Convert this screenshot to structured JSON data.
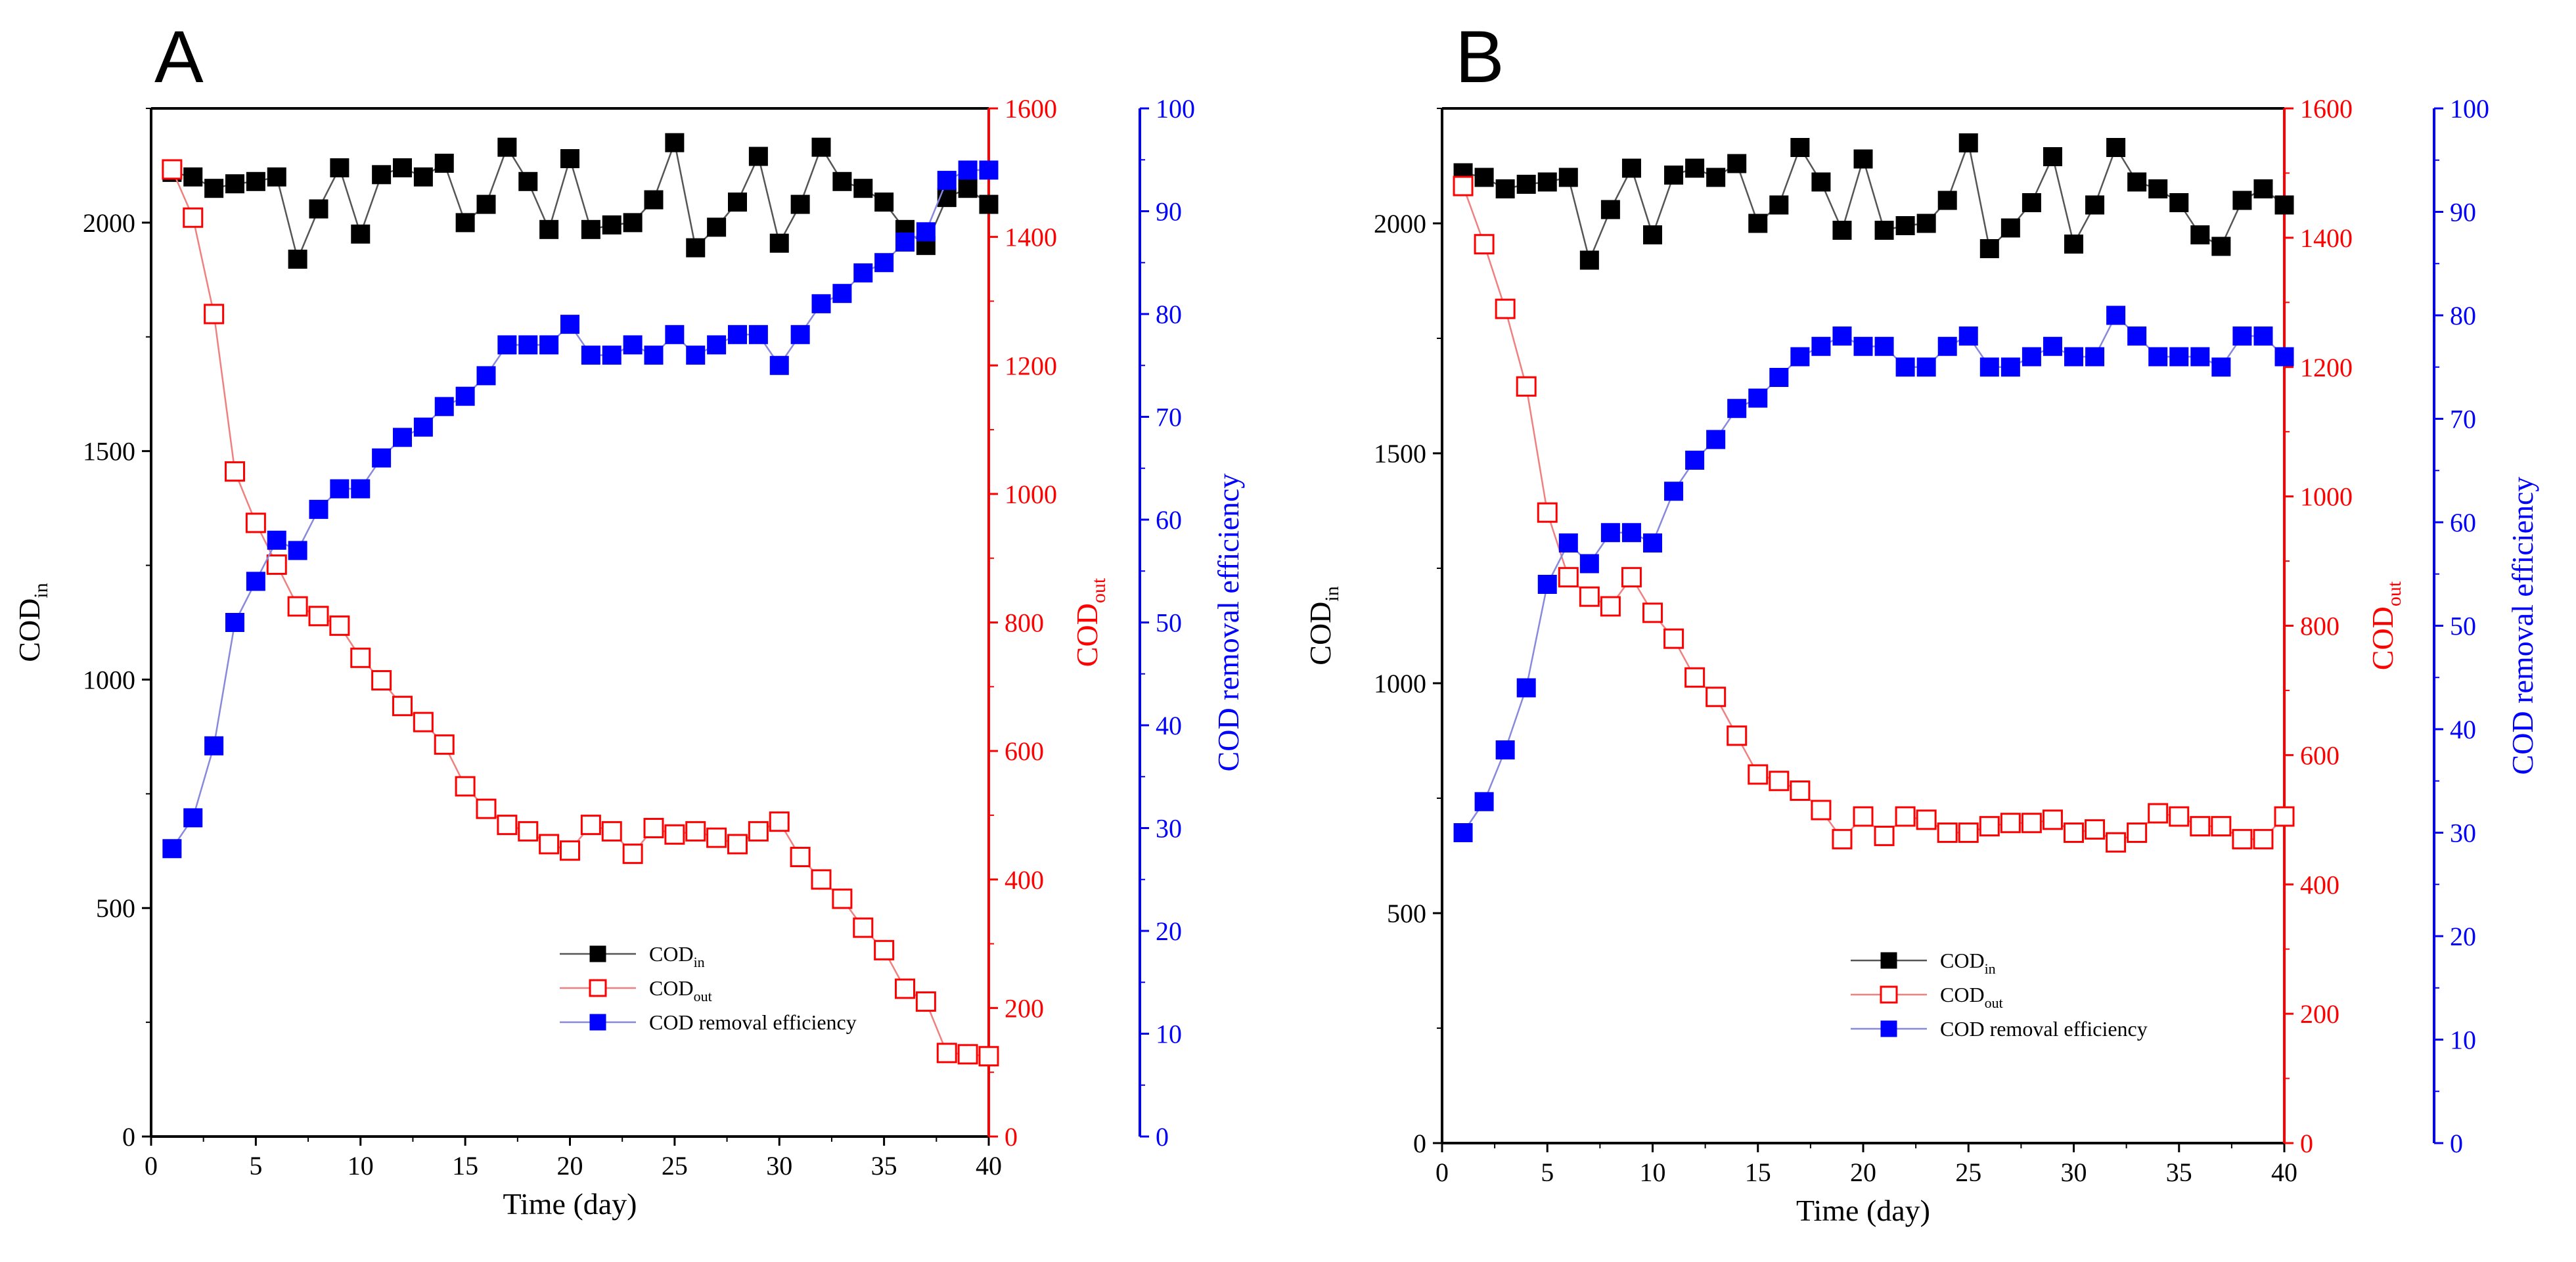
{
  "figure": {
    "colors": {
      "cod_in": "#000000",
      "cod_out": "#ff0000",
      "cod_removal": "#0000ff",
      "cod_out_line": "#f08080",
      "cod_removal_line": "#8888dd"
    }
  },
  "chart_data": [
    {
      "type": "line",
      "panel_label": "A",
      "xlabel": "Time (day)",
      "ylabel_left": "COD",
      "ylabel_left_sub": "in",
      "ylabel_right1": "COD",
      "ylabel_right1_sub": "out",
      "ylabel_right2": "COD removal efficiency",
      "x_ticks": [
        "0",
        "5",
        "10",
        "15",
        "20",
        "25",
        "30",
        "35",
        "40"
      ],
      "left_ticks": [
        "0",
        "500",
        "1000",
        "1500",
        "2000"
      ],
      "right1_ticks": [
        "0",
        "200",
        "400",
        "600",
        "800",
        "1000",
        "1200",
        "1400",
        "1600"
      ],
      "right2_ticks": [
        "0",
        "10",
        "20",
        "30",
        "40",
        "50",
        "60",
        "70",
        "80",
        "90",
        "100"
      ],
      "xlim": [
        0,
        40
      ],
      "left_ylim": [
        0,
        2250
      ],
      "right1_ylim": [
        0,
        1600
      ],
      "right2_ylim": [
        0,
        100
      ],
      "legend": {
        "position": "bottom-center",
        "entries": [
          {
            "label": "COD",
            "sub": "in"
          },
          {
            "label": "COD",
            "sub": "out"
          },
          {
            "label": "COD removal efficiency",
            "sub": ""
          }
        ]
      },
      "x": [
        1,
        2,
        3,
        4,
        5,
        6,
        7,
        8,
        9,
        10,
        11,
        12,
        13,
        14,
        15,
        16,
        17,
        18,
        19,
        20,
        21,
        22,
        23,
        24,
        25,
        26,
        27,
        28,
        29,
        30,
        31,
        32,
        33,
        34,
        35,
        36,
        37,
        38,
        39,
        40
      ],
      "series": [
        {
          "name": "COD_in",
          "axis": "left",
          "marker": "filled-square",
          "values": [
            2110,
            2100,
            2075,
            2085,
            2090,
            2100,
            1920,
            2030,
            2120,
            1975,
            2105,
            2120,
            2100,
            2130,
            2000,
            2040,
            2165,
            2090,
            1985,
            2140,
            1985,
            1995,
            2000,
            2050,
            2175,
            1945,
            1990,
            2045,
            2145,
            1955,
            2040,
            2165,
            2090,
            2075,
            2045,
            1985,
            1950,
            2055,
            2075,
            2040
          ]
        },
        {
          "name": "COD_out",
          "axis": "right1",
          "marker": "open-square",
          "values": [
            1505,
            1430,
            1280,
            1035,
            955,
            890,
            825,
            810,
            795,
            745,
            710,
            670,
            645,
            610,
            545,
            510,
            485,
            475,
            455,
            445,
            485,
            475,
            440,
            480,
            470,
            475,
            465,
            455,
            475,
            490,
            435,
            400,
            370,
            325,
            290,
            230,
            210,
            130,
            128,
            125
          ]
        },
        {
          "name": "COD removal efficiency",
          "axis": "right2",
          "marker": "filled-square",
          "values": [
            28,
            31,
            38,
            50,
            54,
            58,
            57,
            61,
            63,
            63,
            66,
            68,
            69,
            71,
            72,
            74,
            77,
            77,
            77,
            79,
            76,
            76,
            77,
            76,
            78,
            76,
            77,
            78,
            78,
            75,
            78,
            81,
            82,
            84,
            85,
            87,
            88,
            93,
            94,
            94
          ]
        }
      ]
    },
    {
      "type": "line",
      "panel_label": "B",
      "xlabel": "Time (day)",
      "ylabel_left": "COD",
      "ylabel_left_sub": "in",
      "ylabel_right1": "COD",
      "ylabel_right1_sub": "out",
      "ylabel_right2": "COD removal efficiency",
      "x_ticks": [
        "0",
        "5",
        "10",
        "15",
        "20",
        "25",
        "30",
        "35",
        "40"
      ],
      "left_ticks": [
        "0",
        "500",
        "1000",
        "1500",
        "2000"
      ],
      "right1_ticks": [
        "0",
        "200",
        "400",
        "600",
        "800",
        "1000",
        "1200",
        "1400",
        "1600"
      ],
      "right2_ticks": [
        "0",
        "10",
        "20",
        "30",
        "40",
        "50",
        "60",
        "70",
        "80",
        "90",
        "100"
      ],
      "xlim": [
        0,
        40
      ],
      "left_ylim": [
        0,
        2250
      ],
      "right1_ylim": [
        0,
        1600
      ],
      "right2_ylim": [
        0,
        100
      ],
      "legend": {
        "position": "bottom-center",
        "entries": [
          {
            "label": "COD",
            "sub": "in"
          },
          {
            "label": "COD",
            "sub": "out"
          },
          {
            "label": "COD removal efficiency",
            "sub": ""
          }
        ]
      },
      "x": [
        1,
        2,
        3,
        4,
        5,
        6,
        7,
        8,
        9,
        10,
        11,
        12,
        13,
        14,
        15,
        16,
        17,
        18,
        19,
        20,
        21,
        22,
        23,
        24,
        25,
        26,
        27,
        28,
        29,
        30,
        31,
        32,
        33,
        34,
        35,
        36,
        37,
        38,
        39,
        40
      ],
      "series": [
        {
          "name": "COD_in",
          "axis": "left",
          "marker": "filled-square",
          "values": [
            2110,
            2100,
            2075,
            2085,
            2090,
            2100,
            1920,
            2030,
            2120,
            1975,
            2105,
            2120,
            2100,
            2130,
            2000,
            2040,
            2165,
            2090,
            1985,
            2140,
            1985,
            1995,
            2000,
            2050,
            2175,
            1945,
            1990,
            2045,
            2145,
            1955,
            2040,
            2165,
            2090,
            2075,
            2045,
            1975,
            1950,
            2050,
            2075,
            2040
          ]
        },
        {
          "name": "COD_out",
          "axis": "right1",
          "marker": "open-square",
          "values": [
            1480,
            1390,
            1290,
            1170,
            975,
            875,
            845,
            830,
            875,
            820,
            780,
            720,
            690,
            630,
            570,
            560,
            545,
            515,
            470,
            505,
            475,
            505,
            500,
            480,
            480,
            490,
            495,
            495,
            500,
            480,
            485,
            465,
            480,
            510,
            505,
            490,
            490,
            470,
            470,
            505
          ]
        },
        {
          "name": "COD removal efficiency",
          "axis": "right2",
          "marker": "filled-square",
          "values": [
            30,
            33,
            38,
            44,
            54,
            58,
            56,
            59,
            59,
            58,
            63,
            66,
            68,
            71,
            72,
            74,
            76,
            77,
            78,
            77,
            77,
            75,
            75,
            77,
            78,
            75,
            75,
            76,
            77,
            76,
            76,
            80,
            78,
            76,
            76,
            76,
            75,
            78,
            78,
            76
          ]
        }
      ]
    }
  ]
}
